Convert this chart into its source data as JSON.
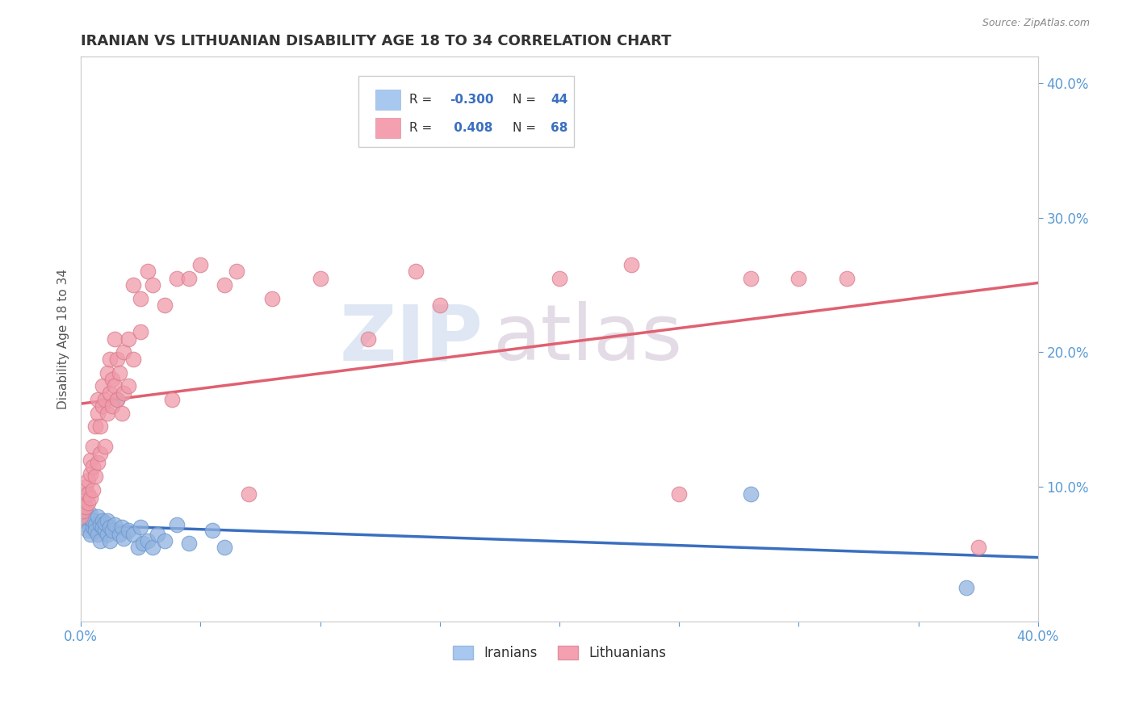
{
  "title": "IRANIAN VS LITHUANIAN DISABILITY AGE 18 TO 34 CORRELATION CHART",
  "source_text": "Source: ZipAtlas.com",
  "ylabel": "Disability Age 18 to 34",
  "xlim": [
    0.0,
    0.4
  ],
  "ylim": [
    0.0,
    0.42
  ],
  "legend_r_iranian": "-0.300",
  "legend_n_iranian": "44",
  "legend_r_lithuanian": "0.408",
  "legend_n_lithuanian": "68",
  "iranian_color": "#92b4e0",
  "iranian_edge": "#6a96cc",
  "lithuanian_color": "#f09aaa",
  "lithuanian_edge": "#d87a8a",
  "iranian_line_color": "#3a6fc0",
  "lithuanian_line_color": "#e06070",
  "lithuanian_dashed_color": "#d09098",
  "background_color": "#ffffff",
  "grid_color": "#cccccc",
  "iranians_scatter": [
    [
      0.0,
      0.082
    ],
    [
      0.001,
      0.075
    ],
    [
      0.002,
      0.072
    ],
    [
      0.003,
      0.068
    ],
    [
      0.003,
      0.078
    ],
    [
      0.004,
      0.065
    ],
    [
      0.004,
      0.08
    ],
    [
      0.005,
      0.07
    ],
    [
      0.005,
      0.075
    ],
    [
      0.006,
      0.072
    ],
    [
      0.006,
      0.068
    ],
    [
      0.007,
      0.065
    ],
    [
      0.007,
      0.078
    ],
    [
      0.008,
      0.072
    ],
    [
      0.008,
      0.06
    ],
    [
      0.009,
      0.075
    ],
    [
      0.009,
      0.07
    ],
    [
      0.01,
      0.068
    ],
    [
      0.01,
      0.073
    ],
    [
      0.011,
      0.065
    ],
    [
      0.011,
      0.075
    ],
    [
      0.012,
      0.07
    ],
    [
      0.012,
      0.06
    ],
    [
      0.013,
      0.068
    ],
    [
      0.014,
      0.072
    ],
    [
      0.015,
      0.165
    ],
    [
      0.016,
      0.065
    ],
    [
      0.017,
      0.07
    ],
    [
      0.018,
      0.062
    ],
    [
      0.02,
      0.068
    ],
    [
      0.022,
      0.065
    ],
    [
      0.024,
      0.055
    ],
    [
      0.025,
      0.07
    ],
    [
      0.026,
      0.058
    ],
    [
      0.028,
      0.06
    ],
    [
      0.03,
      0.055
    ],
    [
      0.032,
      0.065
    ],
    [
      0.035,
      0.06
    ],
    [
      0.04,
      0.072
    ],
    [
      0.045,
      0.058
    ],
    [
      0.055,
      0.068
    ],
    [
      0.06,
      0.055
    ],
    [
      0.28,
      0.095
    ],
    [
      0.37,
      0.025
    ]
  ],
  "lithuanians_scatter": [
    [
      0.0,
      0.078
    ],
    [
      0.001,
      0.082
    ],
    [
      0.001,
      0.09
    ],
    [
      0.002,
      0.095
    ],
    [
      0.002,
      0.085
    ],
    [
      0.002,
      0.1
    ],
    [
      0.003,
      0.088
    ],
    [
      0.003,
      0.095
    ],
    [
      0.003,
      0.105
    ],
    [
      0.004,
      0.092
    ],
    [
      0.004,
      0.11
    ],
    [
      0.004,
      0.12
    ],
    [
      0.005,
      0.098
    ],
    [
      0.005,
      0.115
    ],
    [
      0.005,
      0.13
    ],
    [
      0.006,
      0.108
    ],
    [
      0.006,
      0.145
    ],
    [
      0.007,
      0.118
    ],
    [
      0.007,
      0.155
    ],
    [
      0.007,
      0.165
    ],
    [
      0.008,
      0.125
    ],
    [
      0.008,
      0.145
    ],
    [
      0.009,
      0.16
    ],
    [
      0.009,
      0.175
    ],
    [
      0.01,
      0.13
    ],
    [
      0.01,
      0.165
    ],
    [
      0.011,
      0.155
    ],
    [
      0.011,
      0.185
    ],
    [
      0.012,
      0.17
    ],
    [
      0.012,
      0.195
    ],
    [
      0.013,
      0.16
    ],
    [
      0.013,
      0.18
    ],
    [
      0.014,
      0.21
    ],
    [
      0.014,
      0.175
    ],
    [
      0.015,
      0.195
    ],
    [
      0.015,
      0.165
    ],
    [
      0.016,
      0.185
    ],
    [
      0.017,
      0.155
    ],
    [
      0.018,
      0.2
    ],
    [
      0.018,
      0.17
    ],
    [
      0.02,
      0.21
    ],
    [
      0.02,
      0.175
    ],
    [
      0.022,
      0.25
    ],
    [
      0.022,
      0.195
    ],
    [
      0.025,
      0.24
    ],
    [
      0.025,
      0.215
    ],
    [
      0.028,
      0.26
    ],
    [
      0.03,
      0.25
    ],
    [
      0.035,
      0.235
    ],
    [
      0.038,
      0.165
    ],
    [
      0.04,
      0.255
    ],
    [
      0.045,
      0.255
    ],
    [
      0.05,
      0.265
    ],
    [
      0.06,
      0.25
    ],
    [
      0.065,
      0.26
    ],
    [
      0.07,
      0.095
    ],
    [
      0.08,
      0.24
    ],
    [
      0.1,
      0.255
    ],
    [
      0.12,
      0.21
    ],
    [
      0.14,
      0.26
    ],
    [
      0.15,
      0.235
    ],
    [
      0.2,
      0.255
    ],
    [
      0.23,
      0.265
    ],
    [
      0.25,
      0.095
    ],
    [
      0.28,
      0.255
    ],
    [
      0.3,
      0.255
    ],
    [
      0.32,
      0.255
    ],
    [
      0.375,
      0.055
    ]
  ]
}
